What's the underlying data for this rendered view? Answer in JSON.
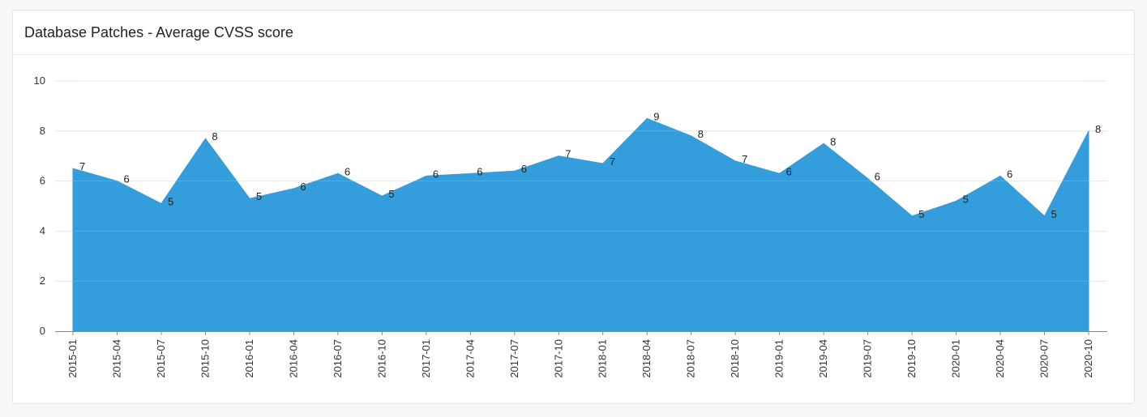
{
  "panel": {
    "title": "Database Patches - Average CVSS score"
  },
  "colors": {
    "area": "#339edb",
    "grid": "#e6e6e6",
    "axis": "#888888"
  },
  "chart_data": {
    "type": "area",
    "title": "Database Patches - Average CVSS score",
    "xlabel": "",
    "ylabel": "",
    "ylim": [
      0,
      10
    ],
    "yticks": [
      0,
      2,
      4,
      6,
      8,
      10
    ],
    "grid": true,
    "categories": [
      "2015-01",
      "2015-04",
      "2015-07",
      "2015-10",
      "2016-01",
      "2016-04",
      "2016-07",
      "2016-10",
      "2017-01",
      "2017-04",
      "2017-07",
      "2017-10",
      "2018-01",
      "2018-04",
      "2018-07",
      "2018-10",
      "2019-01",
      "2019-04",
      "2019-07",
      "2019-10",
      "2020-01",
      "2020-04",
      "2020-07",
      "2020-10"
    ],
    "values": [
      6.5,
      6.0,
      5.1,
      7.7,
      5.3,
      5.7,
      6.3,
      5.4,
      6.2,
      6.3,
      6.4,
      7.0,
      6.7,
      8.5,
      7.8,
      6.8,
      6.3,
      7.5,
      6.1,
      4.6,
      5.2,
      6.2,
      4.6,
      8.0
    ],
    "labels": [
      "7",
      "6",
      "5",
      "8",
      "5",
      "6",
      "6",
      "5",
      "6",
      "6",
      "6",
      "7",
      "7",
      "9",
      "8",
      "7",
      "6",
      "8",
      "6",
      "5",
      "5",
      "6",
      "5",
      "8"
    ]
  }
}
